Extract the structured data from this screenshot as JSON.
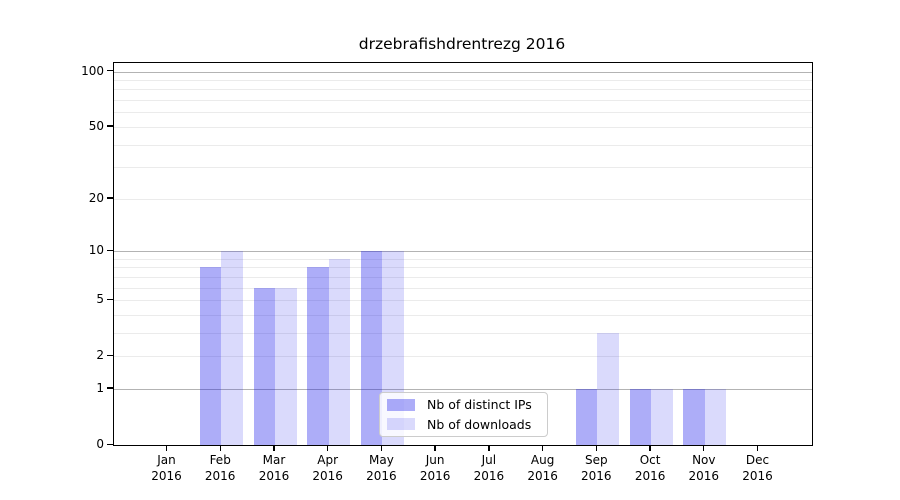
{
  "title": "drzebrafishdrentrezg 2016",
  "chart_data": {
    "type": "bar",
    "title": "drzebrafishdrentrezg 2016",
    "months": [
      "Jan",
      "Feb",
      "Mar",
      "Apr",
      "May",
      "Jun",
      "Jul",
      "Aug",
      "Sep",
      "Oct",
      "Nov",
      "Dec"
    ],
    "year": "2016",
    "series": [
      {
        "name": "Nb of distinct IPs",
        "color": "rgba(20,20,235,0.35)",
        "values": [
          0,
          8,
          6,
          8,
          10,
          0,
          0,
          0,
          1,
          1,
          1,
          0
        ]
      },
      {
        "name": "Nb of downloads",
        "color": "rgba(20,20,235,0.155)",
        "values": [
          0,
          10,
          6,
          9,
          10,
          0,
          0,
          0,
          3,
          1,
          1,
          0
        ]
      }
    ],
    "yscale": "log10(1+v)",
    "ylim": [
      0,
      111
    ],
    "yticks": [
      0,
      1,
      2,
      5,
      10,
      20,
      50,
      100
    ],
    "gridlines": {
      "major": [
        1,
        10,
        100
      ],
      "minor": [
        2,
        3,
        4,
        5,
        6,
        7,
        8,
        9,
        20,
        30,
        40,
        50,
        60,
        70,
        80,
        90
      ]
    },
    "grid": true,
    "legend_position": "lower center",
    "colors": {
      "spine": "#000000",
      "major_grid": "#b3b3b3",
      "minor_grid": "#ebebeb",
      "text": "#000000"
    }
  }
}
